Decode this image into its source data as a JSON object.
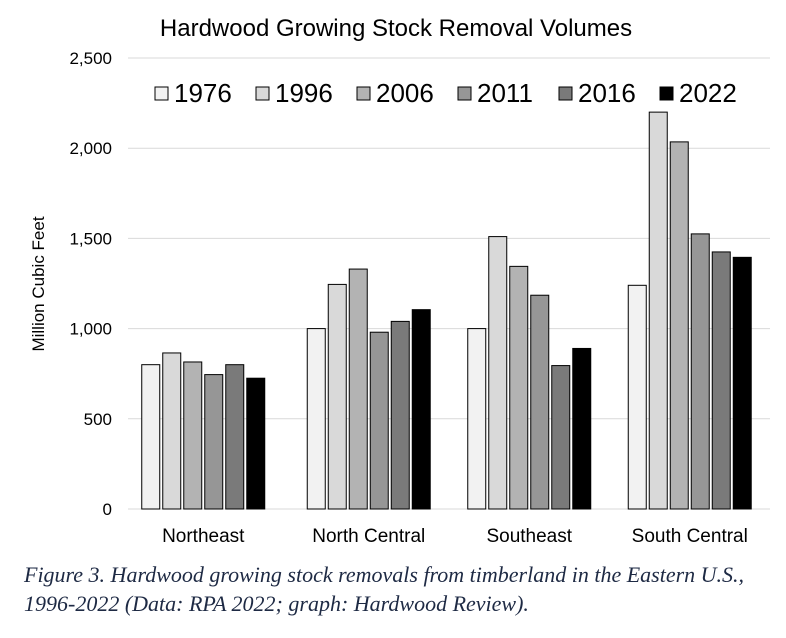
{
  "chart_data": {
    "type": "bar",
    "title": "Hardwood Growing Stock Removal Volumes",
    "xlabel": "",
    "ylabel": "Million Cubic Feet",
    "ylim": [
      0,
      2500
    ],
    "yticks": [
      "0",
      "500",
      "1,000",
      "1,500",
      "2,000",
      "2,500"
    ],
    "ytick_values": [
      0,
      500,
      1000,
      1500,
      2000,
      2500
    ],
    "grid": true,
    "legend_position": "top",
    "categories": [
      "Northeast",
      "North Central",
      "Southeast",
      "South Central"
    ],
    "series": [
      {
        "name": "1976",
        "color": "#f2f2f2",
        "values": [
          800,
          1000,
          1000,
          1240
        ]
      },
      {
        "name": "1996",
        "color": "#d9d9d9",
        "values": [
          865,
          1245,
          1510,
          2200
        ]
      },
      {
        "name": "2006",
        "color": "#b3b3b3",
        "values": [
          815,
          1330,
          1345,
          2035
        ]
      },
      {
        "name": "2011",
        "color": "#969696",
        "values": [
          745,
          980,
          1185,
          1525
        ]
      },
      {
        "name": "2016",
        "color": "#7a7a7a",
        "values": [
          800,
          1040,
          795,
          1425
        ]
      },
      {
        "name": "2022",
        "color": "#000000",
        "values": [
          725,
          1105,
          890,
          1395
        ]
      }
    ]
  },
  "caption": "Figure 3. Hardwood growing stock removals from timberland in the Eastern U.S., 1996-2022 (Data: RPA 2022; graph: Hardwood Review)."
}
